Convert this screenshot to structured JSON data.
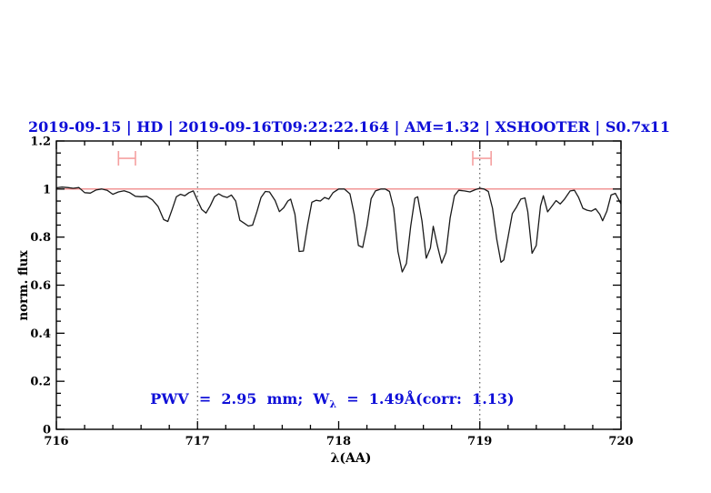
{
  "chart_data": {
    "type": "line",
    "title": "2019-09-15 | HD | 2019-09-16T09:22:22.164 | AM=1.32 | XSHOOTER | S0.7x11",
    "xlabel": "λ(AA)",
    "ylabel": "norm. flux",
    "xlim": [
      716,
      720
    ],
    "ylim": [
      0,
      1.2
    ],
    "x_major_ticks": [
      716,
      717,
      718,
      719,
      720
    ],
    "x_tick_labels": [
      "716",
      "717",
      "718",
      "719",
      "720"
    ],
    "x_minor_step": 0.2,
    "y_major_ticks": [
      0,
      0.2,
      0.4,
      0.6,
      0.8,
      1,
      1.2
    ],
    "y_tick_labels": [
      "0",
      "0.2",
      "0.4",
      "0.6",
      "0.8",
      "1",
      "1.2"
    ],
    "y_minor_step": 0.05,
    "grid": "off",
    "guide_vlines": [
      717,
      719
    ],
    "continuum_level": 1.0,
    "range_markers": [
      {
        "x1": 716.44,
        "x2": 716.56,
        "y": 1.128
      },
      {
        "x1": 718.95,
        "x2": 719.08,
        "y": 1.128
      }
    ],
    "annotation": {
      "pre": "PWV  =  2.95  mm;  W",
      "sub": "λ",
      "post": "  =  1.49Å(corr:  1.13)"
    },
    "series": [
      {
        "name": "normalized spectrum",
        "x": [
          716.0,
          716.04,
          716.08,
          716.12,
          716.16,
          716.2,
          716.24,
          716.28,
          716.32,
          716.36,
          716.4,
          716.44,
          716.48,
          716.52,
          716.56,
          716.6,
          716.64,
          716.68,
          716.72,
          716.76,
          716.79,
          716.82,
          716.85,
          716.88,
          716.91,
          716.94,
          716.97,
          717.0,
          717.03,
          717.06,
          717.09,
          717.12,
          717.15,
          717.18,
          717.21,
          717.24,
          717.27,
          717.3,
          717.33,
          717.36,
          717.39,
          717.42,
          717.45,
          717.48,
          717.51,
          717.55,
          717.58,
          717.61,
          717.64,
          717.66,
          717.69,
          717.72,
          717.75,
          717.78,
          717.81,
          717.84,
          717.87,
          717.9,
          717.93,
          717.96,
          718.0,
          718.04,
          718.08,
          718.11,
          718.14,
          718.17,
          718.2,
          718.23,
          718.26,
          718.3,
          718.33,
          718.36,
          718.39,
          718.42,
          718.45,
          718.48,
          718.51,
          718.54,
          718.56,
          718.59,
          718.62,
          718.65,
          718.67,
          718.7,
          718.73,
          718.76,
          718.79,
          718.82,
          718.85,
          718.89,
          718.93,
          718.97,
          719.0,
          719.03,
          719.06,
          719.09,
          719.12,
          719.15,
          719.17,
          719.2,
          719.23,
          719.26,
          719.29,
          719.32,
          719.34,
          719.37,
          719.4,
          719.43,
          719.45,
          719.48,
          719.51,
          719.54,
          719.57,
          719.6,
          719.64,
          719.67,
          719.7,
          719.73,
          719.76,
          719.79,
          719.82,
          719.85,
          719.87,
          719.9,
          719.93,
          719.96,
          720.0
        ],
        "y": [
          1.005,
          1.008,
          1.006,
          1.003,
          1.006,
          0.985,
          0.983,
          0.996,
          1.0,
          0.995,
          0.978,
          0.988,
          0.993,
          0.985,
          0.97,
          0.968,
          0.97,
          0.955,
          0.928,
          0.873,
          0.865,
          0.915,
          0.968,
          0.978,
          0.972,
          0.985,
          0.992,
          0.952,
          0.915,
          0.9,
          0.93,
          0.968,
          0.98,
          0.97,
          0.965,
          0.975,
          0.95,
          0.87,
          0.858,
          0.846,
          0.85,
          0.905,
          0.965,
          0.99,
          0.988,
          0.952,
          0.906,
          0.922,
          0.95,
          0.958,
          0.895,
          0.74,
          0.742,
          0.85,
          0.945,
          0.953,
          0.95,
          0.965,
          0.958,
          0.985,
          1.0,
          1.0,
          0.98,
          0.895,
          0.765,
          0.757,
          0.845,
          0.96,
          0.992,
          1.0,
          1.0,
          0.99,
          0.92,
          0.74,
          0.655,
          0.69,
          0.845,
          0.962,
          0.968,
          0.868,
          0.712,
          0.755,
          0.845,
          0.762,
          0.692,
          0.735,
          0.88,
          0.972,
          0.995,
          0.992,
          0.988,
          0.998,
          1.003,
          1.0,
          0.99,
          0.92,
          0.79,
          0.695,
          0.705,
          0.8,
          0.898,
          0.925,
          0.958,
          0.963,
          0.905,
          0.733,
          0.765,
          0.93,
          0.972,
          0.905,
          0.928,
          0.952,
          0.938,
          0.958,
          0.992,
          0.995,
          0.965,
          0.92,
          0.912,
          0.908,
          0.918,
          0.895,
          0.868,
          0.908,
          0.975,
          0.982,
          0.938
        ]
      }
    ],
    "colors": {
      "title_blue": "#0f0fd8",
      "annotation_blue": "#0f0fd8",
      "continuum_red": "#ee7272",
      "marker_pink": "#f5a0a0",
      "spectrum_black": "#1a1a1a",
      "axis_black": "#000000",
      "guide_gray": "#3a3a3a"
    }
  }
}
